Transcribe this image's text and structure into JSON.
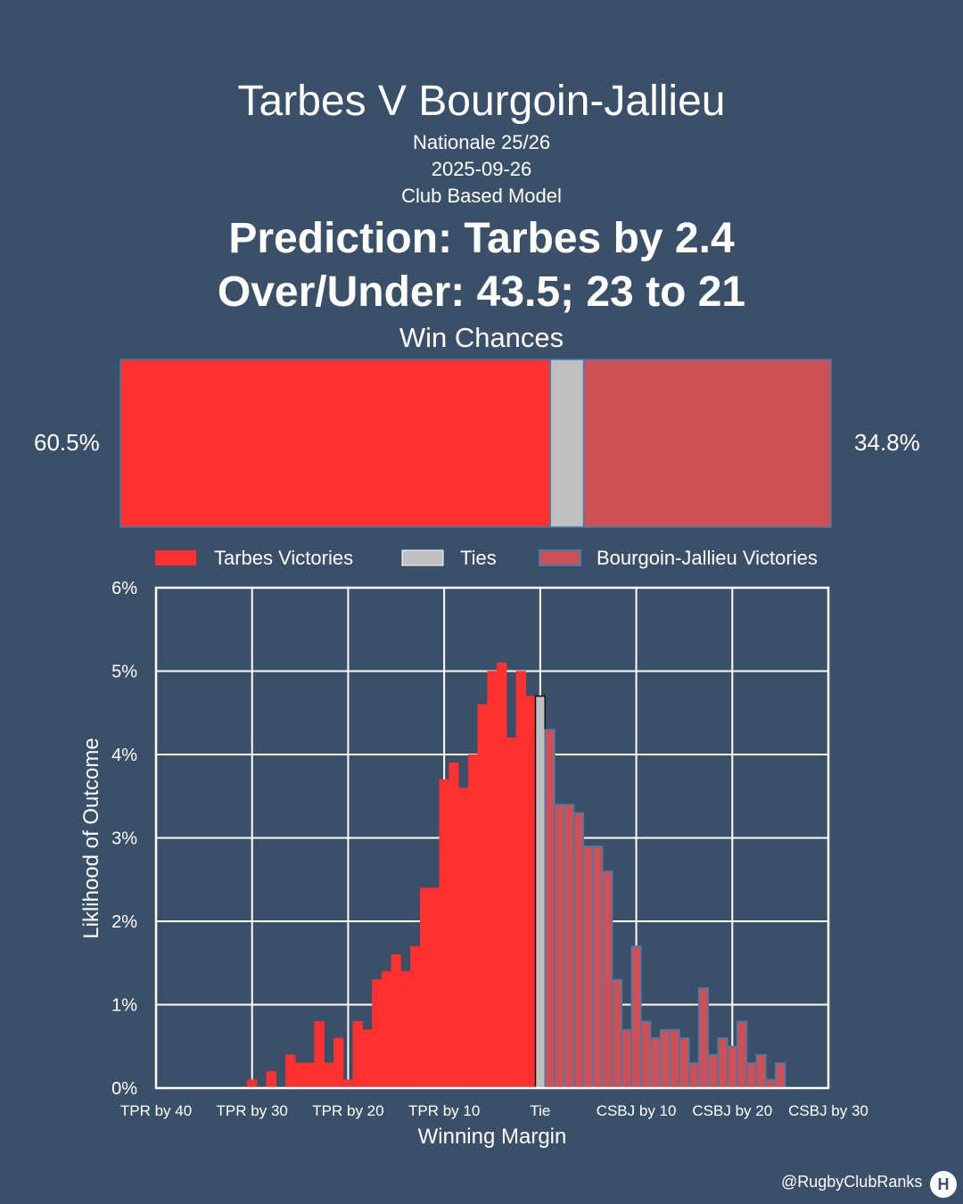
{
  "header": {
    "title": "Tarbes V Bourgoin-Jallieu",
    "competition": "Nationale 25/26",
    "date": "2025-09-26",
    "model": "Club Based Model",
    "prediction": "Prediction: Tarbes by 2.4",
    "over_under": "Over/Under: 43.5; 23 to 21",
    "win_chances_label": "Win Chances"
  },
  "win_bar": {
    "home_pct_label": "60.5%",
    "away_pct_label": "34.8%",
    "home": 60.5,
    "tie": 4.7,
    "away": 34.8
  },
  "legend": {
    "home": "Tarbes Victories",
    "tie": "Ties",
    "away": "Bourgoin-Jallieu Victories"
  },
  "colors": {
    "background": "#3a5068",
    "home": "#ff3030",
    "tie": "#c0c0c0",
    "away": "#cc5055",
    "away_edge": "#3a7fb0"
  },
  "chart_data": {
    "type": "bar",
    "xlabel": "Winning Margin",
    "ylabel": "Liklihood of Outcome",
    "ylim": [
      0,
      6
    ],
    "xlim": [
      -40,
      30
    ],
    "grid": true,
    "x_ticks": [
      {
        "value": -40,
        "label": "TPR by 40"
      },
      {
        "value": -30,
        "label": "TPR by 30"
      },
      {
        "value": -20,
        "label": "TPR by 20"
      },
      {
        "value": -10,
        "label": "TPR by 10"
      },
      {
        "value": 0,
        "label": "Tie"
      },
      {
        "value": 10,
        "label": "CSBJ by 10"
      },
      {
        "value": 20,
        "label": "CSBJ by 20"
      },
      {
        "value": 30,
        "label": "CSBJ by 30"
      }
    ],
    "y_ticks": [
      {
        "value": 0,
        "label": "0%"
      },
      {
        "value": 1,
        "label": "1%"
      },
      {
        "value": 2,
        "label": "2%"
      },
      {
        "value": 3,
        "label": "3%"
      },
      {
        "value": 4,
        "label": "4%"
      },
      {
        "value": 5,
        "label": "5%"
      },
      {
        "value": 6,
        "label": "6%"
      }
    ],
    "series": [
      {
        "name": "Tarbes Victories",
        "x": [
          -30,
          -28,
          -26,
          -25,
          -24,
          -23,
          -22,
          -21,
          -20,
          -19,
          -18,
          -17,
          -16,
          -15,
          -14,
          -13,
          -12,
          -11,
          -10,
          -9,
          -8,
          -7,
          -6,
          -5,
          -4,
          -3,
          -2,
          -1
        ],
        "values": [
          0.1,
          0.2,
          0.4,
          0.3,
          0.3,
          0.8,
          0.3,
          0.6,
          0.1,
          0.8,
          0.7,
          1.3,
          1.4,
          1.6,
          1.4,
          1.7,
          2.4,
          2.4,
          3.7,
          3.9,
          3.6,
          4.0,
          4.6,
          5.0,
          5.1,
          4.2,
          5.0,
          4.7
        ]
      },
      {
        "name": "Ties",
        "x": [
          0
        ],
        "values": [
          4.7
        ]
      },
      {
        "name": "Bourgoin-Jallieu Victories",
        "x": [
          1,
          2,
          3,
          4,
          5,
          6,
          7,
          8,
          9,
          10,
          11,
          12,
          13,
          14,
          15,
          16,
          17,
          18,
          19,
          20,
          21,
          22,
          23,
          24,
          25
        ],
        "values": [
          4.3,
          3.4,
          3.4,
          3.3,
          2.9,
          2.9,
          2.6,
          1.3,
          0.7,
          1.7,
          0.8,
          0.6,
          0.7,
          0.7,
          0.6,
          0.3,
          1.2,
          0.4,
          0.6,
          0.5,
          0.8,
          0.3,
          0.4,
          0.1,
          0.3
        ]
      }
    ]
  },
  "footer": {
    "credit": "@RugbyClubRanks",
    "logo_icon": "club-logo-icon"
  }
}
